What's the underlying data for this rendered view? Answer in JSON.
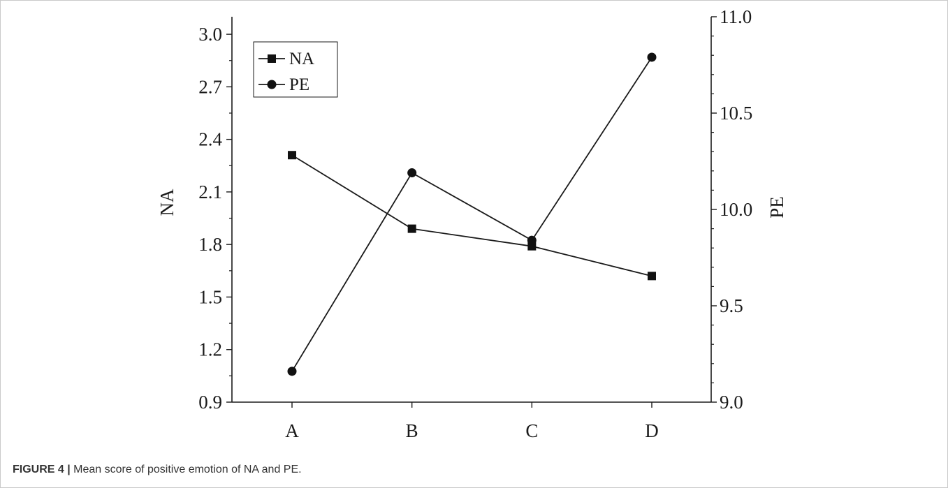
{
  "caption": {
    "label": "FIGURE 4 |",
    "text": "Mean score of positive emotion of NA and PE."
  },
  "chart_data": {
    "type": "line",
    "title": "",
    "categories": [
      "A",
      "B",
      "C",
      "D"
    ],
    "xlabel": "",
    "y_left": {
      "label": "NA",
      "range": [
        0.9,
        3.1
      ],
      "ticks": [
        "0.9",
        "1.2",
        "1.5",
        "1.8",
        "2.1",
        "2.4",
        "2.7",
        "3.0"
      ],
      "tick_values": [
        0.9,
        1.2,
        1.5,
        1.8,
        2.1,
        2.4,
        2.7,
        3.0
      ]
    },
    "y_right": {
      "label": "PE",
      "range": [
        9.0,
        11.0
      ],
      "ticks": [
        "9.0",
        "9.5",
        "10.0",
        "10.5",
        "11.0"
      ],
      "tick_values": [
        9.0,
        9.5,
        10.0,
        10.5,
        11.0
      ]
    },
    "series": [
      {
        "name": "NA",
        "axis": "left",
        "marker": "square",
        "values": [
          2.31,
          1.89,
          1.79,
          1.62
        ]
      },
      {
        "name": "PE",
        "axis": "right",
        "marker": "circle",
        "values": [
          9.16,
          10.19,
          9.84,
          10.79
        ]
      }
    ],
    "legend": {
      "position": "top-left"
    },
    "grid": false,
    "colors": {
      "line": "#1a1a1a",
      "marker": "#111111",
      "axis": "#1a1a1a"
    }
  }
}
